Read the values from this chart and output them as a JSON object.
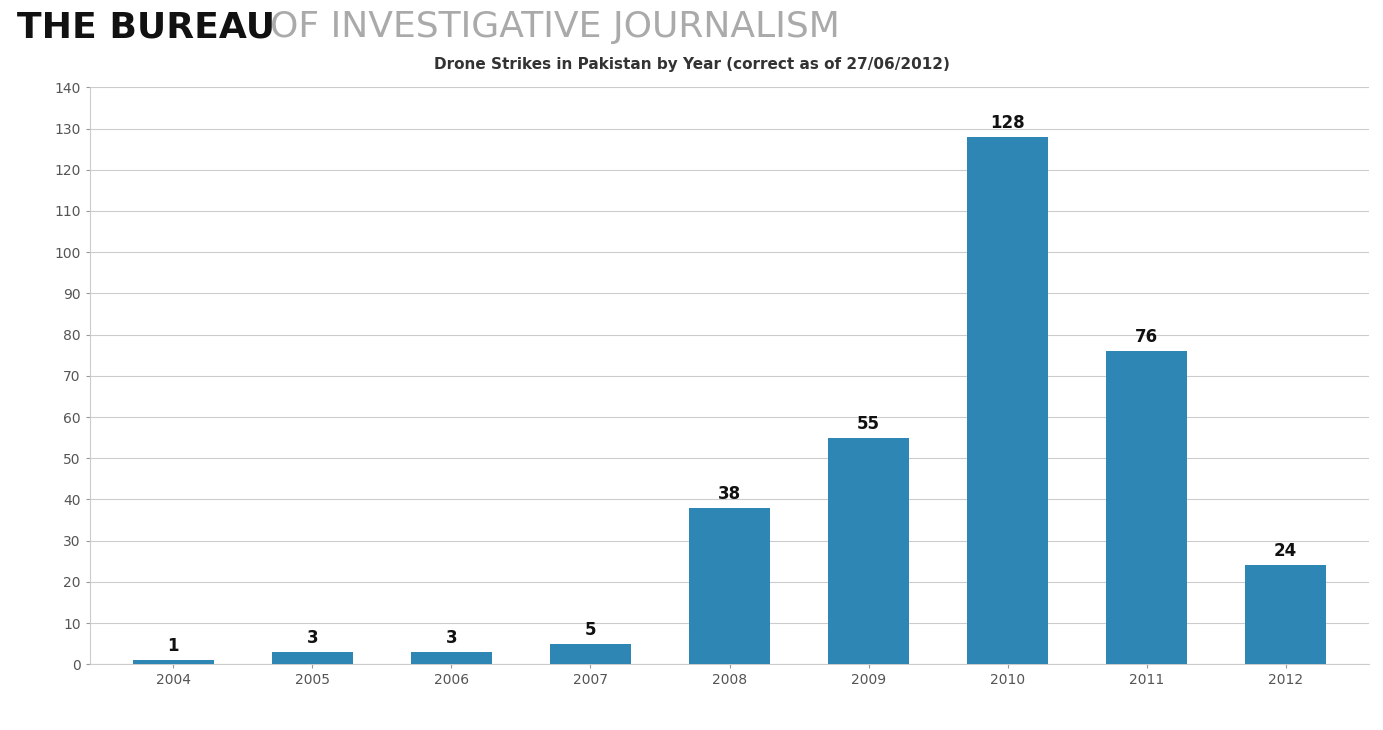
{
  "title": "Drone Strikes in Pakistan by Year (correct as of 27/06/2012)",
  "header_bold": "THE BUREAU",
  "header_light": "OF INVESTIGATIVE JOURNALISM",
  "years": [
    "2004",
    "2005",
    "2006",
    "2007",
    "2008",
    "2009",
    "2010",
    "2011",
    "2012"
  ],
  "values": [
    1,
    3,
    3,
    5,
    38,
    55,
    128,
    76,
    24
  ],
  "bar_color": "#2e86b5",
  "ylim": [
    0,
    140
  ],
  "yticks": [
    0,
    10,
    20,
    30,
    40,
    50,
    60,
    70,
    80,
    90,
    100,
    110,
    120,
    130,
    140
  ],
  "white_bg": "#ffffff",
  "gray_strip_bg": "#e8e8e8",
  "plot_bg": "#ffffff",
  "title_fontsize": 11,
  "bar_label_fontsize": 12,
  "axis_tick_fontsize": 10,
  "header_bold_color": "#111111",
  "header_light_color": "#aaaaaa",
  "header_fontsize": 26,
  "grid_color": "#cccccc",
  "title_color": "#333333",
  "tick_color": "#999999"
}
